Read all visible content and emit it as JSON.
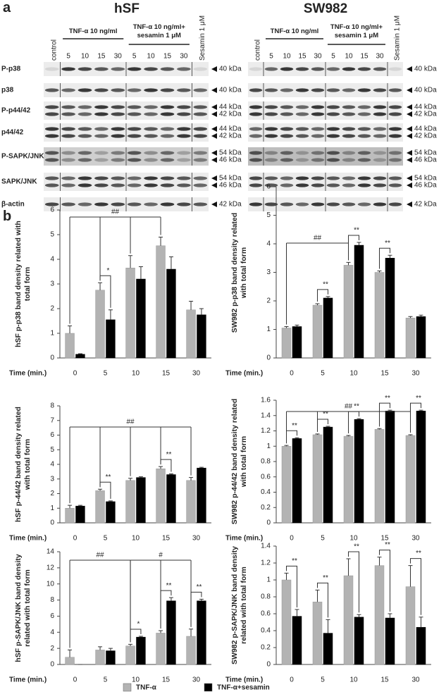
{
  "blots": {
    "label": "a",
    "cells": [
      "hSF",
      "SW982"
    ],
    "control": "control",
    "tnf": "TNF-α 10 ng/ml",
    "combo": "TNF-α 10 ng/ml+ sesamin 1 μM",
    "sesamin": "Sesamin 1 μM",
    "times": [
      "5",
      "10",
      "15",
      "30"
    ],
    "rows": [
      {
        "name": "P-p38",
        "kda": [
          "40 kDa"
        ]
      },
      {
        "name": "p38",
        "kda": [
          "40 kDa"
        ]
      },
      {
        "name": "P-p44/42",
        "kda": [
          "44 kDa",
          "42 kDa"
        ]
      },
      {
        "name": "p44/42",
        "kda": [
          "44 kDa",
          "42 kDa"
        ]
      },
      {
        "name": "P-SAPK/JNK",
        "kda": [
          "54 kDa",
          "46 kDa"
        ]
      },
      {
        "name": "SAPK/JNK",
        "kda": [
          "54 kDa",
          "46 kDa"
        ]
      },
      {
        "name": "β-actin",
        "kda": [
          "42 kDa"
        ]
      }
    ]
  },
  "panel_b_label": "b",
  "chart_data": [
    {
      "type": "bar",
      "y_label": "hSF p-p38 band density related with total form",
      "x_label": "Time (min.)",
      "categories": [
        "0",
        "5",
        "10",
        "15",
        "30"
      ],
      "series": [
        {
          "name": "TNF-α",
          "color": "#b3b3b3",
          "values": [
            1.0,
            2.75,
            3.65,
            4.55,
            1.95
          ],
          "errors": [
            0.3,
            0.3,
            0.5,
            0.35,
            0.35
          ]
        },
        {
          "name": "TNF-α+sesamin",
          "color": "#000000",
          "values": [
            0.15,
            1.55,
            3.2,
            3.6,
            1.75
          ],
          "errors": [
            0.02,
            0.4,
            0.5,
            0.5,
            0.25
          ]
        }
      ],
      "ylim": [
        0,
        6
      ],
      "yticks": [
        0,
        1,
        2,
        3,
        4,
        5,
        6
      ],
      "annotations": [
        "##",
        "*"
      ]
    },
    {
      "type": "bar",
      "y_label": "SW982 p-p38 band density related with total form",
      "x_label": "Time (min.)",
      "categories": [
        "0",
        "5",
        "10",
        "15",
        "30"
      ],
      "series": [
        {
          "name": "TNF-α",
          "color": "#b3b3b3",
          "values": [
            1.05,
            1.85,
            3.25,
            3.0,
            1.4
          ],
          "errors": [
            0.05,
            0.05,
            0.1,
            0.05,
            0.05
          ]
        },
        {
          "name": "TNF-α+sesamin",
          "color": "#000000",
          "values": [
            1.1,
            2.1,
            3.95,
            3.5,
            1.45
          ],
          "errors": [
            0.05,
            0.05,
            0.1,
            0.1,
            0.05
          ]
        }
      ],
      "ylim": [
        0,
        6
      ],
      "yticks": [
        0,
        1,
        2,
        3,
        4,
        5,
        6
      ],
      "annotations": [
        "##",
        "**",
        "**",
        "**"
      ]
    },
    {
      "type": "bar",
      "y_label": "hSF p-44/42 band density related with total form",
      "x_label": "Time (min.)",
      "categories": [
        "0",
        "5",
        "10",
        "15",
        "30"
      ],
      "series": [
        {
          "name": "TNF-α",
          "color": "#b3b3b3",
          "values": [
            1.0,
            2.2,
            2.9,
            3.7,
            2.9
          ],
          "errors": [
            0.2,
            0.1,
            0.15,
            0.15,
            0.2
          ]
        },
        {
          "name": "TNF-α+sesamin",
          "color": "#000000",
          "values": [
            1.15,
            1.45,
            3.1,
            3.3,
            3.75
          ],
          "errors": [
            0.05,
            0.05,
            0.05,
            0.05,
            0.05
          ]
        }
      ],
      "ylim": [
        0,
        8
      ],
      "yticks": [
        0,
        1,
        2,
        3,
        4,
        5,
        6,
        7,
        8
      ],
      "annotations": [
        "##",
        "**",
        "**"
      ]
    },
    {
      "type": "bar",
      "y_label": "SW982 p-44/42 band density related with total form",
      "x_label": "Time (min.)",
      "categories": [
        "0",
        "5",
        "10",
        "15",
        "30"
      ],
      "series": [
        {
          "name": "TNF-α",
          "color": "#b3b3b3",
          "values": [
            1.0,
            1.15,
            1.13,
            1.22,
            1.14
          ],
          "errors": [
            0.01,
            0.01,
            0.01,
            0.01,
            0.01
          ]
        },
        {
          "name": "TNF-α+sesamin",
          "color": "#000000",
          "values": [
            1.1,
            1.25,
            1.35,
            1.46,
            1.46
          ],
          "errors": [
            0.01,
            0.01,
            0.01,
            0.01,
            0.01
          ]
        }
      ],
      "ylim": [
        0,
        1.6
      ],
      "yticks": [
        0,
        0.2,
        0.4,
        0.6,
        0.8,
        1,
        1.2,
        1.4,
        1.6
      ],
      "annotations": [
        "##",
        "**",
        "**",
        "**",
        "**",
        "**"
      ]
    },
    {
      "type": "bar",
      "y_label": "hSF p-SAPK/JNK band density related with total form",
      "x_label": "Time (min.)",
      "categories": [
        "0",
        "5",
        "10",
        "15",
        "30"
      ],
      "series": [
        {
          "name": "TNF-α",
          "color": "#b3b3b3",
          "values": [
            0.9,
            1.8,
            2.3,
            3.9,
            3.5
          ],
          "errors": [
            0.9,
            0.4,
            0.2,
            0.3,
            0.9
          ]
        },
        {
          "name": "TNF-α+sesamin",
          "color": "#000000",
          "values": [
            0,
            1.7,
            3.4,
            7.9,
            7.9
          ],
          "errors": [
            0,
            0.3,
            0.1,
            0.4,
            0.2
          ]
        }
      ],
      "ylim": [
        0,
        14
      ],
      "yticks": [
        0,
        2,
        4,
        6,
        8,
        10,
        12,
        14
      ],
      "annotations": [
        "##",
        "#",
        "*",
        "**",
        "**"
      ]
    },
    {
      "type": "bar",
      "y_label": "SW982 p-SAPK/JNK band density related with total form",
      "x_label": "Time (min.)",
      "categories": [
        "0",
        "5",
        "10",
        "15",
        "30"
      ],
      "series": [
        {
          "name": "TNF-α",
          "color": "#b3b3b3",
          "values": [
            1.0,
            0.74,
            1.05,
            1.17,
            0.92
          ],
          "errors": [
            0.08,
            0.14,
            0.2,
            0.1,
            0.25
          ]
        },
        {
          "name": "TNF-α+sesamin",
          "color": "#000000",
          "values": [
            0.57,
            0.37,
            0.56,
            0.55,
            0.44
          ],
          "errors": [
            0.08,
            0.16,
            0.03,
            0.05,
            0.12
          ]
        }
      ],
      "ylim": [
        0,
        1.4
      ],
      "yticks": [
        0,
        0.2,
        0.4,
        0.6,
        0.8,
        1,
        1.2,
        1.4
      ],
      "annotations": [
        "**",
        "**",
        "**",
        "**",
        "**"
      ]
    }
  ]
}
